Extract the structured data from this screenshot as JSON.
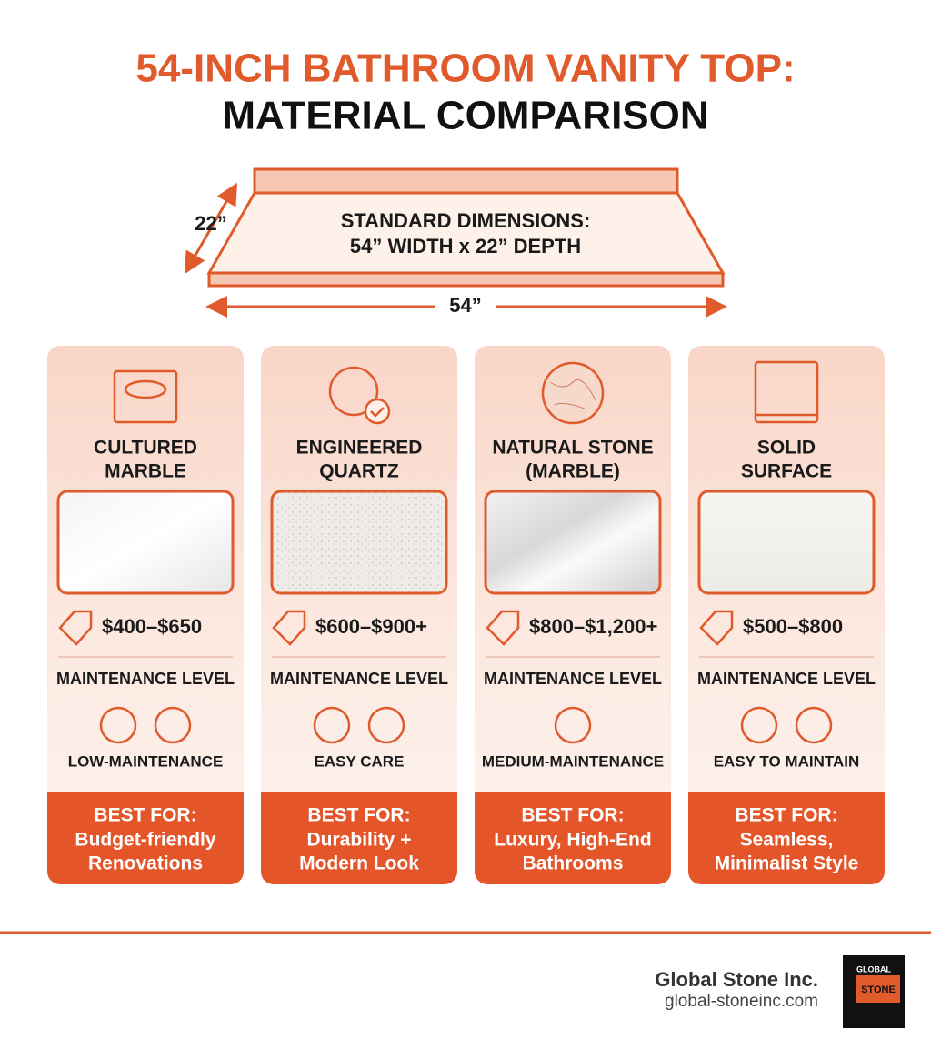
{
  "header": {
    "title_lines": [
      "54-INCH BATHROOM VANITY TOP:",
      "MATERIAL COMPARISON"
    ]
  },
  "dimensions": {
    "depth_label": "22”",
    "caption_lines": [
      "STANDARD DIMENSIONS:",
      "54” WIDTH x 22” DEPTH"
    ],
    "width_label": "54”"
  },
  "cards": [
    {
      "name_lines": [
        "CULTURED",
        "MARBLE"
      ],
      "price": "$400–$650",
      "maintenance_label": "MAINTENANCE LEVEL",
      "maintenance": "LOW-MAINTENANCE",
      "best_for_heading": "BEST FOR:",
      "best_for_lines": [
        "Budget-friendly",
        "Renovations"
      ]
    },
    {
      "name_lines": [
        "ENGINEERED",
        "QUARTZ"
      ],
      "price": "$600–$900+",
      "maintenance_label": "MAINTENANCE LEVEL",
      "maintenance": "EASY CARE",
      "best_for_heading": "BEST FOR:",
      "best_for_lines": [
        "Durability +",
        "Modern Look"
      ]
    },
    {
      "name_lines": [
        "NATURAL STONE",
        "(MARBLE)"
      ],
      "price": "$800–$1,200+",
      "maintenance_label": "MAINTENANCE LEVEL",
      "maintenance": "MEDIUM-MAINTENANCE",
      "best_for_heading": "BEST FOR:",
      "best_for_lines": [
        "Luxury, High-End",
        "Bathrooms"
      ]
    },
    {
      "name_lines": [
        "SOLID",
        "SURFACE"
      ],
      "price": "$500–$800",
      "maintenance_label": "MAINTENANCE LEVEL",
      "maintenance": "EASY TO MAINTAIN",
      "best_for_heading": "BEST FOR:",
      "best_for_lines": [
        "Seamless,",
        "Minimalist Style"
      ]
    }
  ],
  "footer": {
    "company": "Global Stone Inc.",
    "url": "global-stoneinc.com",
    "logo_lines": [
      "GLOBAL",
      "STONE"
    ]
  }
}
